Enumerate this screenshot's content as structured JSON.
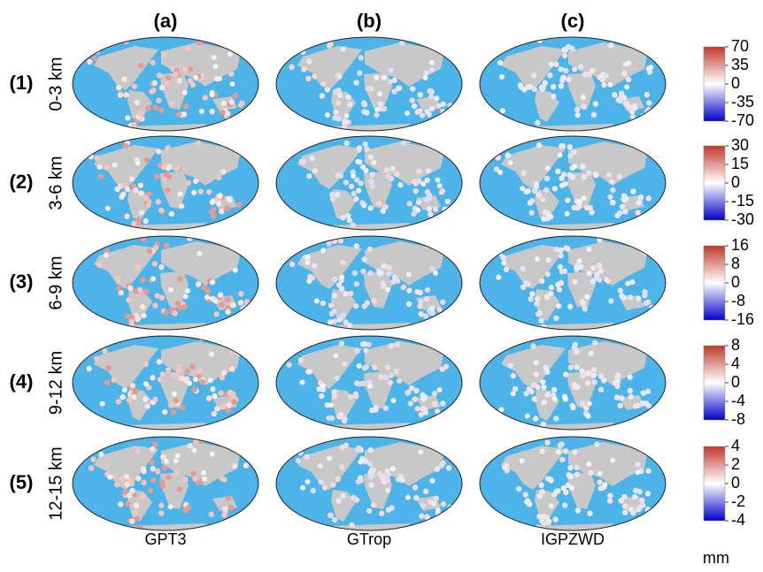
{
  "columns": [
    {
      "label": "(a)",
      "name": "GPT3"
    },
    {
      "label": "(b)",
      "name": "GTrop"
    },
    {
      "label": "(c)",
      "name": "IGPZWD"
    }
  ],
  "rows": [
    {
      "label": "(1)",
      "height": "0-3 km",
      "colorbar": [
        70,
        35,
        0,
        -35,
        -70
      ]
    },
    {
      "label": "(2)",
      "height": "3-6 km",
      "colorbar": [
        30,
        15,
        0,
        -15,
        -30
      ]
    },
    {
      "label": "(3)",
      "height": "6-9 km",
      "colorbar": [
        16,
        8,
        0,
        -8,
        -16
      ]
    },
    {
      "label": "(4)",
      "height": "9-12 km",
      "colorbar": [
        8,
        4,
        0,
        -4,
        -8
      ]
    },
    {
      "label": "(5)",
      "height": "12-15 km",
      "colorbar": [
        4,
        2,
        0,
        -2,
        -4
      ]
    }
  ],
  "unit": "mm"
}
